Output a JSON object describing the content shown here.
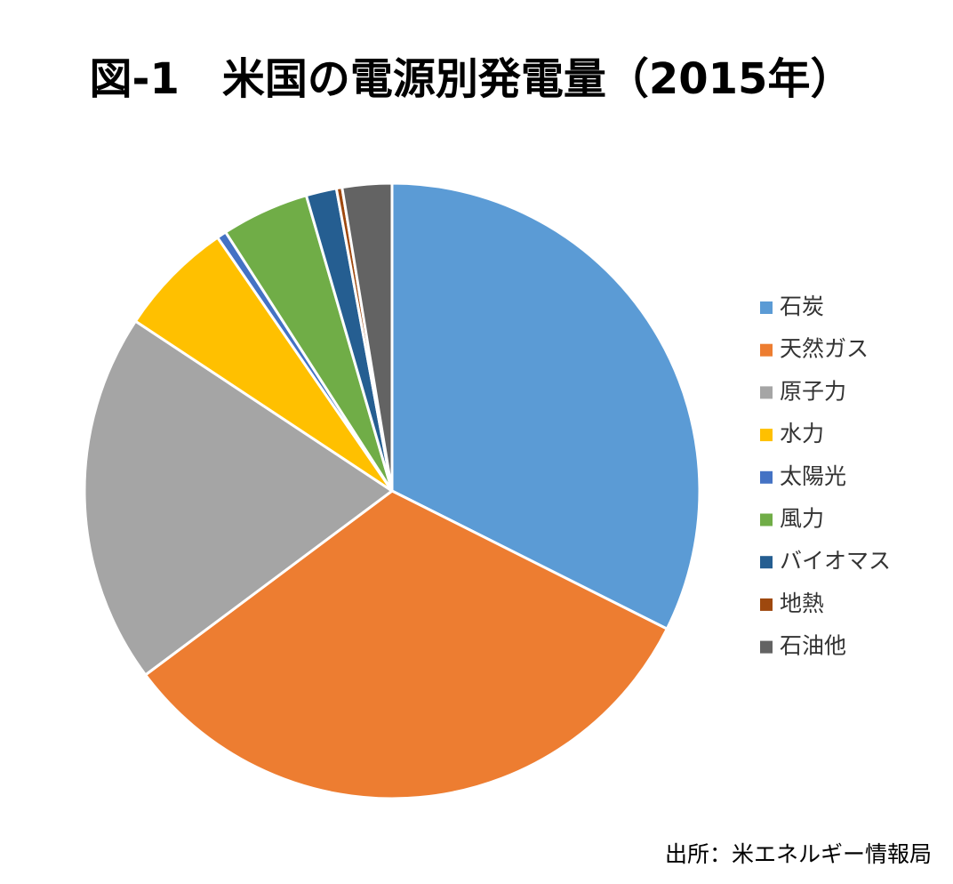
{
  "chart_data": {
    "type": "pie",
    "title": "図-1　米国の電源別発電量（2015年）",
    "categories": [
      "石炭",
      "天然ガス",
      "原子力",
      "水力",
      "太陽光",
      "風力",
      "バイオマス",
      "地熱",
      "石油他"
    ],
    "values": [
      32.4,
      32.4,
      19.5,
      6.1,
      0.5,
      4.6,
      1.6,
      0.3,
      2.6
    ],
    "colors": [
      "#5b9bd5",
      "#ed7d31",
      "#a5a5a5",
      "#ffc000",
      "#4472c4",
      "#70ad47",
      "#255e91",
      "#9e480e",
      "#636363"
    ],
    "legend": "right",
    "source": "出所：米エネルギー情報局"
  }
}
